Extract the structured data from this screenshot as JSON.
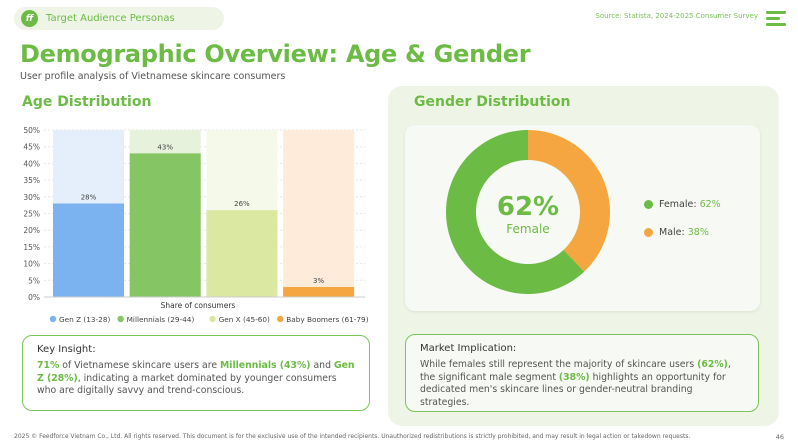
{
  "header": {
    "tag": "Target Audience Personas",
    "logo_text": "ff",
    "source": "Source: Statista, 2024-2025 Consumer Survey"
  },
  "title": "Demographic Overview: Age & Gender",
  "subtitle": "User profile analysis of Vietnamese skincare consumers",
  "age": {
    "heading": "Age Distribution"
  },
  "chart_data": {
    "type": "bar",
    "categories": [
      "Gen Z (13-28)",
      "Millennials (29-44)",
      "Gen X (45-60)",
      "Baby Boomers (61-79)"
    ],
    "values": [
      28,
      43,
      26,
      3
    ],
    "data_labels": [
      "28%",
      "43%",
      "26%",
      "3%"
    ],
    "colors": [
      "#7ab3ef",
      "#85c563",
      "#dbe8a2",
      "#f6a640"
    ],
    "bg_colors": [
      "#e4effb",
      "#e6f2dc",
      "#f5f9ea",
      "#feebd9"
    ],
    "xlabel": "Share of consumers",
    "ylabel": "",
    "ylim": [
      0,
      50
    ],
    "yticks": [
      "0%",
      "5%",
      "10%",
      "15%",
      "20%",
      "25%",
      "30%",
      "35%",
      "40%",
      "45%",
      "50%"
    ],
    "legend": "bottom",
    "grid": true
  },
  "gender": {
    "heading": "Gender Distribution",
    "center_value": "62%",
    "center_label": "Female",
    "female_share": 62,
    "male_share": 38,
    "female_color": "#6cbb45",
    "male_color": "#f6a640",
    "legend": [
      {
        "label": "Female:",
        "value": "62%"
      },
      {
        "label": "Male:",
        "value": "38%"
      }
    ]
  },
  "insight": {
    "heading": "Key Insight:",
    "p1": "71%",
    "p2": " of Vietnamese skincare users are ",
    "p3": "Millennials (43%)",
    "p4": " and ",
    "p5": "Gen Z (28%)",
    "p6": ", indicating a market dominated by younger consumers who are digitally savvy and trend-conscious."
  },
  "market": {
    "heading": "Market Implication:",
    "p1": "While females still represent the majority of skincare users ",
    "p2": "(62%)",
    "p3": ", the significant male segment ",
    "p4": "(38%)",
    "p5": " highlights an opportunity for dedicated men's skincare lines or gender-neutral branding strategies."
  },
  "footer": "2025 © Feedforce Vietnam Co., Ltd. All rights reserved. This document is for the exclusive use of the intended recipients. Unauthorized redistributions is strictly prohibited, and may result in legal action or takedown requests.",
  "page": "46"
}
